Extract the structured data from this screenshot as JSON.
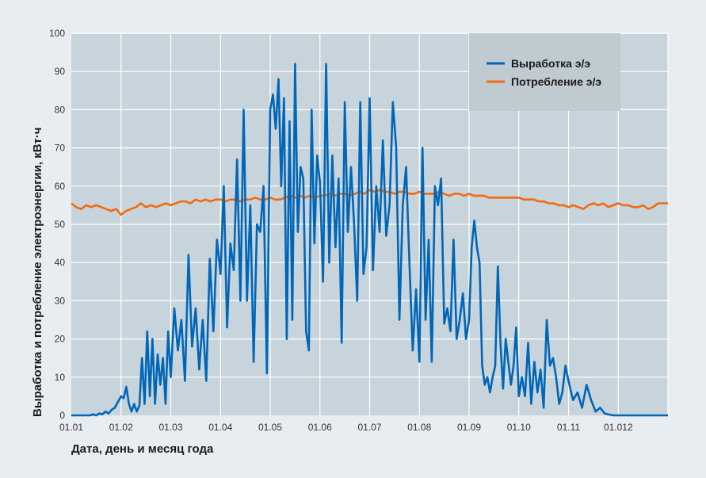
{
  "chart_data": {
    "type": "line",
    "xlabel": "Дата, день и месяц года",
    "ylabel": "Выработка и потребление электроэнергии, кВт·ч",
    "x_ticks": [
      "01.01",
      "01.02",
      "01.03",
      "01.04",
      "01.05",
      "01.06",
      "01.07",
      "01.08",
      "01.09",
      "01.10",
      "01.11",
      "01.012"
    ],
    "y_ticks": [
      "0",
      "10",
      "20",
      "30",
      "40",
      "50",
      "60",
      "70",
      "80",
      "90",
      "100"
    ],
    "ylim": [
      0,
      100
    ],
    "xlim_months": [
      0,
      12
    ],
    "grid": true,
    "legend_position": "top-right",
    "series": [
      {
        "name": "Выработка э/э",
        "color": "#0066b8",
        "values_by_month": [
          [
            0,
            0,
            0,
            0,
            0,
            0,
            0,
            0.3,
            0,
            0.5,
            0.3,
            1,
            0.5,
            1.5,
            2,
            3.5
          ],
          [
            5,
            4.5,
            7.5,
            3,
            1,
            3,
            1,
            2.5,
            15,
            3,
            22,
            5,
            20,
            3,
            16,
            8,
            15,
            3,
            22
          ],
          [
            10,
            28,
            17,
            25,
            9,
            42,
            18,
            28,
            12,
            25,
            9,
            41,
            22,
            46
          ],
          [
            37,
            60,
            23,
            45,
            38,
            67,
            30,
            80,
            30,
            55,
            14,
            50,
            48,
            60,
            11
          ],
          [
            80,
            84,
            75,
            88,
            60,
            83,
            20,
            77,
            25,
            92,
            48,
            65,
            62,
            22,
            17,
            80,
            45,
            68
          ],
          [
            61,
            35,
            92,
            40,
            68,
            44,
            62,
            19,
            82,
            48,
            65,
            50,
            30,
            82,
            37,
            44
          ],
          [
            83,
            38,
            60,
            48,
            72,
            47,
            55,
            82,
            70,
            25,
            55,
            65,
            40,
            17,
            33
          ],
          [
            14,
            70,
            25,
            46,
            14,
            60,
            55,
            62,
            24,
            28,
            22,
            46,
            20,
            25,
            32,
            20
          ],
          [
            25,
            44,
            51,
            44,
            40,
            13,
            8,
            10,
            6,
            10,
            13,
            39,
            19,
            7,
            20,
            14,
            8,
            13,
            23
          ],
          [
            5,
            10,
            5,
            19,
            3,
            14,
            6,
            12,
            2,
            25,
            13,
            15,
            10,
            3,
            6,
            13
          ],
          [
            9,
            4,
            6,
            2,
            8,
            4,
            1,
            2,
            0.5,
            0.2,
            0
          ],
          [
            0,
            0,
            0,
            0,
            0,
            0,
            0
          ]
        ]
      },
      {
        "name": "Потребление э/э",
        "color": "#f26a10",
        "values_by_month": [
          [
            55.5,
            54.5,
            54,
            55,
            54.5,
            55,
            54.5,
            54,
            53.5,
            54
          ],
          [
            52.5,
            53.5,
            54,
            54.5,
            55.5,
            54.5,
            55,
            54.5,
            55,
            55.5
          ],
          [
            55,
            55.5,
            56,
            56,
            55.5,
            56.5,
            56,
            56.5,
            56,
            56.5
          ],
          [
            56.5,
            56,
            56.5,
            56.5,
            56,
            56.5,
            56.5,
            57,
            56.5,
            56.5
          ],
          [
            57,
            56.5,
            56.5,
            57,
            57.5,
            57,
            57.5,
            57,
            57.5,
            57
          ],
          [
            57.5,
            57.5,
            58,
            57.5,
            58,
            58,
            57.5,
            58,
            58.5,
            58
          ],
          [
            59,
            58.5,
            59,
            58.5,
            58.5,
            58,
            58.5,
            58.5,
            58,
            58
          ],
          [
            58.5,
            58,
            58,
            58,
            58.5,
            58,
            57.5,
            58,
            58,
            57.5
          ],
          [
            58,
            57.5,
            57.5,
            57.5,
            57,
            57,
            57,
            57,
            57,
            57
          ],
          [
            57,
            56.5,
            56.5,
            56.5,
            56,
            56,
            55.5,
            55.5,
            55,
            55
          ],
          [
            54.5,
            55,
            54.5,
            54,
            55,
            55.5,
            55,
            55.5,
            54.5,
            55
          ],
          [
            55.5,
            55,
            55,
            54.5,
            54.5,
            55,
            54,
            54.5,
            55.5,
            55.5
          ]
        ]
      }
    ]
  }
}
